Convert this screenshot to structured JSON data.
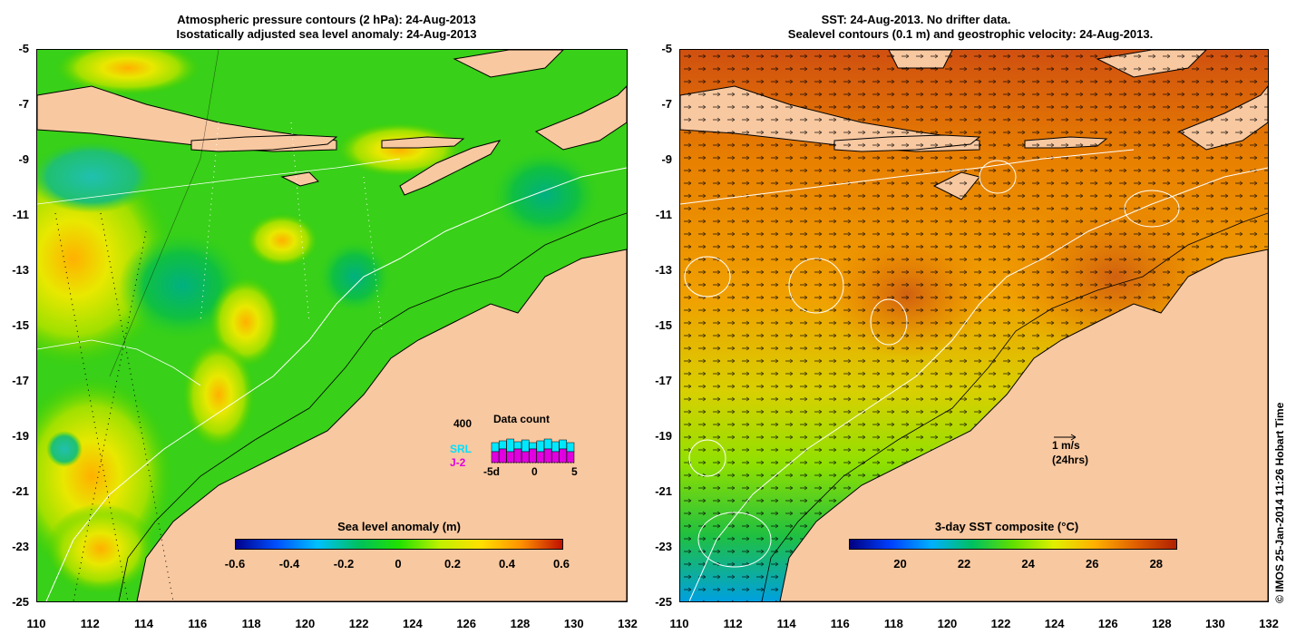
{
  "left": {
    "title_line1": "Atmospheric pressure contours (2 hPa): 24-Aug-2013",
    "title_line2": "Isostatically adjusted sea level anomaly: 24-Aug-2013",
    "colorbar_title": "Sea level anomaly (m)",
    "colorbar_ticks": [
      "-0.6",
      "-0.4",
      "-0.2",
      "0",
      "0.2",
      "0.4",
      "0.6"
    ],
    "inset": {
      "count_label": "400",
      "title": "Data count",
      "series1": "SRL",
      "series2": "J-2",
      "ticks": [
        "-5d",
        "0",
        "5"
      ]
    }
  },
  "right": {
    "title_line1": "SST: 24-Aug-2013. No drifter data.",
    "title_line2": "Sealevel contours (0.1 m) and geostrophic velocity: 24-Aug-2013.",
    "colorbar_title": "3-day SST composite (°C)",
    "colorbar_ticks": [
      "20",
      "22",
      "24",
      "26",
      "28"
    ],
    "scale_speed": "1 m/s",
    "scale_time": "(24hrs)"
  },
  "y_ticks": [
    "-5",
    "-7",
    "-9",
    "-11",
    "-13",
    "-15",
    "-17",
    "-19",
    "-21",
    "-23",
    "-25"
  ],
  "x_ticks": [
    "110",
    "112",
    "114",
    "116",
    "118",
    "120",
    "122",
    "124",
    "126",
    "128",
    "130",
    "132"
  ],
  "copyright": "© IMOS 25-Jan-2014 11:26 Hobart Time",
  "colors": {
    "land": "#f8c8a0",
    "sla_gradient": [
      "#00008b",
      "#0050ff",
      "#00c0ff",
      "#00c060",
      "#20e000",
      "#c0f000",
      "#ffe000",
      "#ff9000",
      "#c01000"
    ],
    "sst_gradient": [
      "#000080",
      "#0040ff",
      "#00b0ff",
      "#00c060",
      "#60e000",
      "#e0f000",
      "#ffb000",
      "#e06000",
      "#b02000"
    ]
  }
}
